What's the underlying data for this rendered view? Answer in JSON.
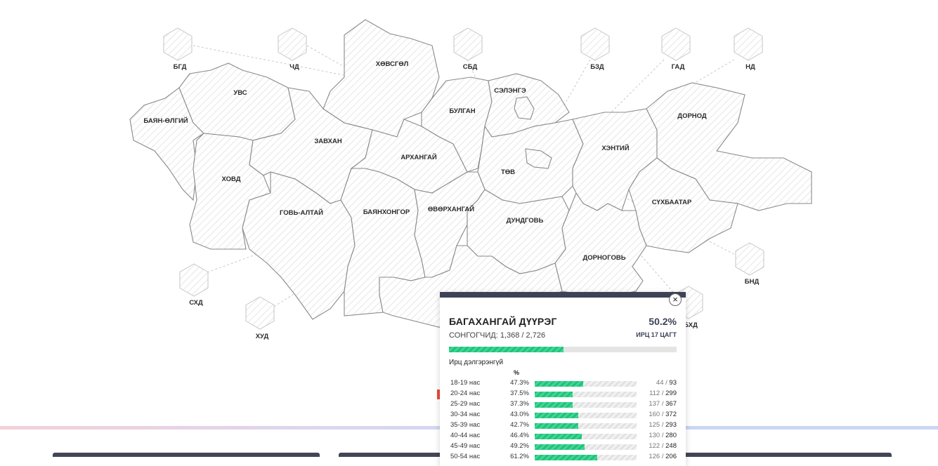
{
  "aimags": {
    "bayan_olgii": "БАЯН-ӨЛГИЙ",
    "uvs": "УВС",
    "khovsgol": "ХӨВСГӨЛ",
    "selenge": "СЭЛЭНГЭ",
    "bulgan": "БУЛГАН",
    "zavkhan": "ЗАВХАН",
    "arkhangai": "АРХАНГАЙ",
    "tov": "ТӨВ",
    "khentii": "ХЭНТИЙ",
    "dornod": "ДОРНОД",
    "khovd": "ХОВД",
    "govi_altai": "ГОВЬ-АЛТАЙ",
    "bayankhongor": "БАЯНХОНГОР",
    "ovorkhangai": "ӨВӨРХАНГАЙ",
    "dundgovi": "ДУНДГОВЬ",
    "sukhbaatar": "СҮХБААТАР",
    "dornogovi": "ДОРНОГОВЬ"
  },
  "districts": {
    "bgd": "БГД",
    "chd": "ЧД",
    "sbd": "СБД",
    "bzd": "БЗД",
    "gad": "ГАД",
    "nd": "НД",
    "bnd": "БНД",
    "bkhd": "БХД",
    "skhd": "СХД",
    "khud": "ХУД"
  },
  "popup": {
    "close_icon": "×",
    "title": "БАГАХАНГАЙ ДҮҮРЭГ",
    "voters_label": "СОНГОГЧИД: 1,368 / 2,726",
    "turnout_pct": "50.2%",
    "turnout_value": 50.2,
    "turnout_time": "ИРЦ 17 ЦАГТ",
    "section_title": "Ирц дэлгэрэнгүй",
    "pct_header": "%",
    "accent_color": "#3d4256",
    "bar_color": "#23c27c",
    "age_rows": [
      {
        "age": "18-19 нас",
        "pct": "47.3%",
        "value": 47.3,
        "voted": "44",
        "total": "93"
      },
      {
        "age": "20-24 нас",
        "pct": "37.5%",
        "value": 37.5,
        "voted": "112",
        "total": "299"
      },
      {
        "age": "25-29 нас",
        "pct": "37.3%",
        "value": 37.3,
        "voted": "137",
        "total": "367"
      },
      {
        "age": "30-34 нас",
        "pct": "43.0%",
        "value": 43.0,
        "voted": "160",
        "total": "372"
      },
      {
        "age": "35-39 нас",
        "pct": "42.7%",
        "value": 42.7,
        "voted": "125",
        "total": "293"
      },
      {
        "age": "40-44 нас",
        "pct": "46.4%",
        "value": 46.4,
        "voted": "130",
        "total": "280"
      },
      {
        "age": "45-49 нас",
        "pct": "49.2%",
        "value": 49.2,
        "voted": "122",
        "total": "248"
      },
      {
        "age": "50-54 нас",
        "pct": "61.2%",
        "value": 61.2,
        "voted": "126",
        "total": "206"
      }
    ]
  }
}
